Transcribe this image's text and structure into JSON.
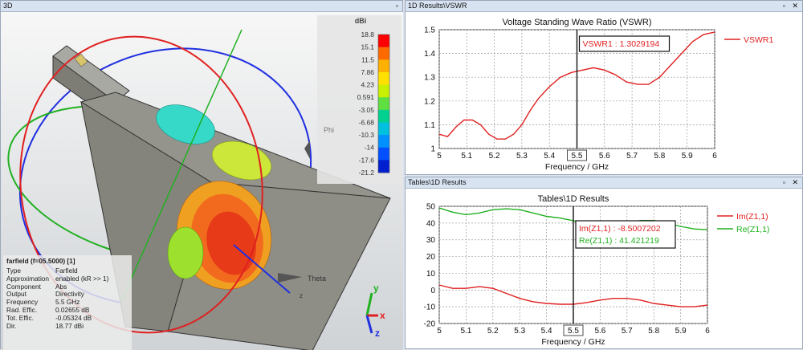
{
  "panels": {
    "view3d": {
      "title": "3D",
      "colorbar": {
        "unit": "dBi",
        "ticks": [
          "18.8",
          "15.1",
          "11.5",
          "7.86",
          "4.23",
          "0.591",
          "-3.05",
          "-6.68",
          "-10.3",
          "-14",
          "-17.6",
          "-21.2"
        ],
        "colors": [
          "#ff0000",
          "#ff6a00",
          "#ffb000",
          "#ffe000",
          "#c8f000",
          "#60e040",
          "#00d090",
          "#00c0e0",
          "#0090ff",
          "#0050ff",
          "#0020d0"
        ]
      },
      "labels": {
        "phi": "Phi",
        "theta": "Theta",
        "z_small": "z"
      },
      "axes": {
        "x": "x",
        "y": "y",
        "z": "z"
      },
      "farfield": {
        "title": "farfield (f=05.5000) [1]",
        "rows": [
          {
            "key": "Type",
            "value": "Farfield"
          },
          {
            "key": "Approximation",
            "value": "enabled (kR >> 1)"
          },
          {
            "key": "Component",
            "value": "Abs"
          },
          {
            "key": "Output",
            "value": "Directivity"
          },
          {
            "key": "Frequency",
            "value": "5.5 GHz"
          },
          {
            "key": "Rad. Effic.",
            "value": "0.02655 dB"
          },
          {
            "key": "Tot. Effic.",
            "value": "-0.05324 dB"
          },
          {
            "key": "Dir.",
            "value": "18.77 dBi"
          }
        ]
      }
    },
    "vswr": {
      "title": "1D Results\\VSWR",
      "marker_label": "VSWR1 : 1.3029194",
      "marker_x": "5.5"
    },
    "tables": {
      "title": "Tables\\1D Results",
      "marker_labels": [
        "Im(Z1,1) : -8.5007202",
        "Re(Z1,1) : 41.421219"
      ],
      "marker_x": "5.5"
    }
  },
  "chart_data": [
    {
      "type": "line",
      "title": "Voltage Standing Wave Ratio (VSWR)",
      "xlabel": "Frequency / GHz",
      "ylabel": "",
      "xlim": [
        5,
        6
      ],
      "ylim": [
        1.0,
        1.5
      ],
      "xticks": [
        "5",
        "5.1",
        "5.2",
        "5.3",
        "5.4",
        "5.5",
        "5.6",
        "5.7",
        "5.8",
        "5.9",
        "6"
      ],
      "yticks": [
        "1",
        "1.1",
        "1.2",
        "1.3",
        "1.4",
        "1.5"
      ],
      "legend_position": "right",
      "series": [
        {
          "name": "VSWR1",
          "color": "#e02020",
          "x": [
            5.0,
            5.03,
            5.06,
            5.09,
            5.12,
            5.15,
            5.18,
            5.21,
            5.24,
            5.27,
            5.3,
            5.33,
            5.36,
            5.4,
            5.44,
            5.48,
            5.52,
            5.56,
            5.6,
            5.64,
            5.68,
            5.72,
            5.76,
            5.8,
            5.84,
            5.88,
            5.92,
            5.96,
            6.0
          ],
          "y": [
            1.06,
            1.05,
            1.09,
            1.12,
            1.12,
            1.1,
            1.06,
            1.04,
            1.04,
            1.06,
            1.1,
            1.16,
            1.21,
            1.26,
            1.3,
            1.32,
            1.33,
            1.34,
            1.33,
            1.31,
            1.28,
            1.27,
            1.27,
            1.3,
            1.35,
            1.4,
            1.45,
            1.48,
            1.49
          ]
        }
      ]
    },
    {
      "type": "line",
      "title": "Tables\\1D Results",
      "xlabel": "Frequency / GHz",
      "ylabel": "",
      "xlim": [
        5,
        6
      ],
      "ylim": [
        -20,
        50
      ],
      "xticks": [
        "5",
        "5.1",
        "5.2",
        "5.3",
        "5.4",
        "5.5",
        "5.6",
        "5.7",
        "5.8",
        "5.9",
        "6"
      ],
      "yticks": [
        "50",
        "40",
        "30",
        "20",
        "10",
        "0",
        "-10",
        "-20"
      ],
      "legend_position": "right",
      "series": [
        {
          "name": "Im(Z1,1)",
          "color": "#e02020",
          "x": [
            5.0,
            5.05,
            5.1,
            5.15,
            5.2,
            5.25,
            5.3,
            5.35,
            5.4,
            5.45,
            5.5,
            5.55,
            5.6,
            5.65,
            5.7,
            5.75,
            5.8,
            5.85,
            5.9,
            5.95,
            6.0
          ],
          "y": [
            3,
            1,
            1,
            2,
            1,
            -2,
            -5,
            -7,
            -8,
            -8.5,
            -8.5,
            -7.5,
            -6,
            -5,
            -5,
            -6,
            -8,
            -9,
            -10,
            -10,
            -9
          ]
        },
        {
          "name": "Re(Z1,1)",
          "color": "#20b020",
          "x": [
            5.0,
            5.05,
            5.1,
            5.15,
            5.2,
            5.25,
            5.3,
            5.35,
            5.4,
            5.45,
            5.5,
            5.55,
            5.6,
            5.65,
            5.7,
            5.75,
            5.8,
            5.85,
            5.9,
            5.95,
            6.0
          ],
          "y": [
            49,
            46.5,
            45,
            46,
            48,
            48.5,
            48,
            46,
            44,
            43,
            41.4,
            40,
            38,
            38,
            40,
            41.5,
            41.5,
            40,
            38,
            36.5,
            36
          ]
        }
      ]
    }
  ]
}
